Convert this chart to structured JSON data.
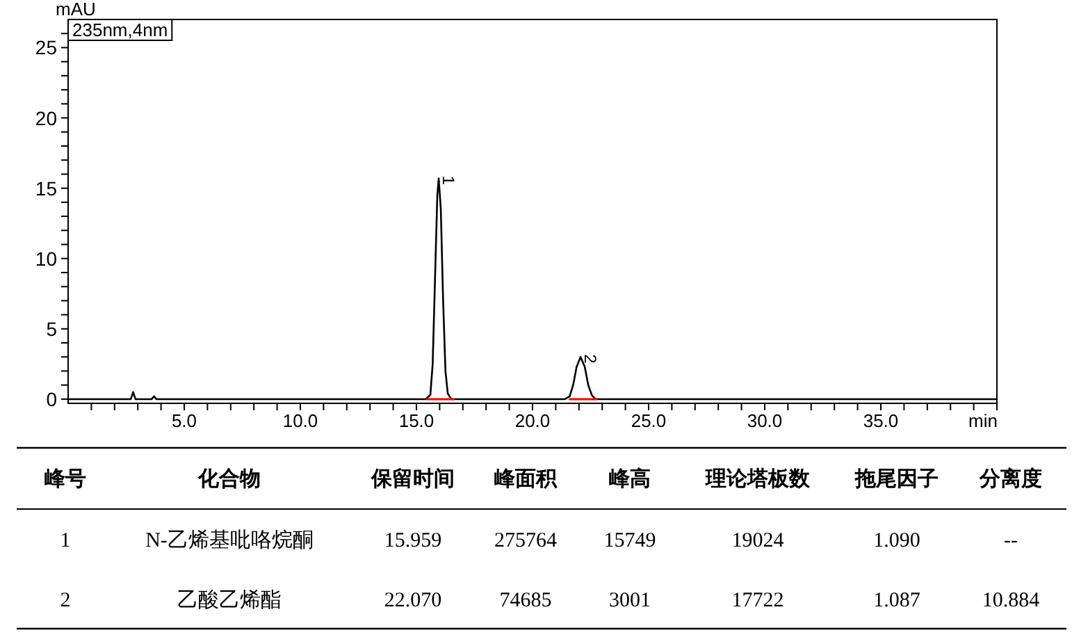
{
  "chart_data": [
    {
      "type": "line",
      "xlabel": "min",
      "ylabel": "mAU",
      "annotations": [
        "235nm,4nm",
        {
          "text": "1",
          "x": 15.959,
          "y": 15.7
        },
        {
          "text": "2",
          "x": 22.07,
          "y": 3.0
        }
      ],
      "xlim": [
        0,
        40
      ],
      "ylim": [
        -0.3,
        27
      ],
      "xticks": [
        {
          "value": 1,
          "label": null
        },
        {
          "value": 2,
          "label": null
        },
        {
          "value": 3,
          "label": null
        },
        {
          "value": 4,
          "label": null
        },
        {
          "value": 5,
          "label": "5.0"
        },
        {
          "value": 6,
          "label": null
        },
        {
          "value": 7,
          "label": null
        },
        {
          "value": 8,
          "label": null
        },
        {
          "value": 9,
          "label": null
        },
        {
          "value": 10,
          "label": "10.0"
        },
        {
          "value": 11,
          "label": null
        },
        {
          "value": 12,
          "label": null
        },
        {
          "value": 13,
          "label": null
        },
        {
          "value": 14,
          "label": null
        },
        {
          "value": 15,
          "label": "15.0"
        },
        {
          "value": 16,
          "label": null
        },
        {
          "value": 17,
          "label": null
        },
        {
          "value": 18,
          "label": null
        },
        {
          "value": 19,
          "label": null
        },
        {
          "value": 20,
          "label": "20.0"
        },
        {
          "value": 21,
          "label": null
        },
        {
          "value": 22,
          "label": null
        },
        {
          "value": 23,
          "label": null
        },
        {
          "value": 24,
          "label": null
        },
        {
          "value": 25,
          "label": "25.0"
        },
        {
          "value": 26,
          "label": null
        },
        {
          "value": 27,
          "label": null
        },
        {
          "value": 28,
          "label": null
        },
        {
          "value": 29,
          "label": null
        },
        {
          "value": 30,
          "label": "30.0"
        },
        {
          "value": 31,
          "label": null
        },
        {
          "value": 32,
          "label": null
        },
        {
          "value": 33,
          "label": null
        },
        {
          "value": 34,
          "label": null
        },
        {
          "value": 35,
          "label": "35.0"
        },
        {
          "value": 36,
          "label": null
        },
        {
          "value": 37,
          "label": null
        },
        {
          "value": 38,
          "label": null
        },
        {
          "value": 39,
          "label": null
        },
        {
          "value": 40,
          "label": null
        }
      ],
      "yticks": [
        0,
        {
          "value": 1,
          "label": null
        },
        {
          "value": 2,
          "label": null
        },
        {
          "value": 3,
          "label": null
        },
        {
          "value": 4,
          "label": null
        },
        5,
        {
          "value": 6,
          "label": null
        },
        {
          "value": 7,
          "label": null
        },
        {
          "value": 8,
          "label": null
        },
        {
          "value": 9,
          "label": null
        },
        10,
        {
          "value": 11,
          "label": null
        },
        {
          "value": 12,
          "label": null
        },
        {
          "value": 13,
          "label": null
        },
        {
          "value": 14,
          "label": null
        },
        15,
        {
          "value": 16,
          "label": null
        },
        {
          "value": 17,
          "label": null
        },
        {
          "value": 18,
          "label": null
        },
        {
          "value": 19,
          "label": null
        },
        20,
        {
          "value": 21,
          "label": null
        },
        {
          "value": 22,
          "label": null
        },
        {
          "value": 23,
          "label": null
        },
        {
          "value": 24,
          "label": null
        },
        25,
        {
          "value": 26,
          "label": null
        }
      ],
      "series": [
        {
          "color": "#000000",
          "x": [
            0,
            2.7,
            2.8,
            2.9,
            3.6,
            3.7,
            3.8,
            15.4,
            15.6,
            15.7,
            15.8,
            15.9,
            15.96,
            16.05,
            16.15,
            16.25,
            16.35,
            16.5,
            21.4,
            21.6,
            21.75,
            21.9,
            22.07,
            22.25,
            22.4,
            22.55,
            22.7,
            40
          ],
          "values": [
            0,
            0,
            0.5,
            0,
            0,
            0.2,
            0,
            0,
            0.3,
            2.5,
            8.5,
            14.5,
            15.7,
            13.5,
            7,
            2,
            0.4,
            0,
            0,
            0.2,
            1.0,
            2.3,
            3.0,
            2.3,
            1.0,
            0.3,
            0,
            0
          ]
        },
        {
          "color": "#ff0000",
          "x": [
            15.45,
            16.6
          ],
          "values": [
            0,
            0
          ]
        },
        {
          "color": "#ff0000",
          "x": [
            21.6,
            22.75
          ],
          "values": [
            0,
            0
          ]
        }
      ]
    },
    {
      "type": "other",
      "categories": [
        "峰号",
        "化合物",
        "保留时间",
        "峰面积",
        "峰高",
        "理论塔板数",
        "拖尾因子",
        "分离度"
      ],
      "cell_labels": [
        [
          "1",
          "N-乙烯基吡咯烷酮",
          "15.959",
          "275764",
          "15749",
          "19024",
          "1.090",
          "--"
        ],
        [
          "2",
          "乙酸乙烯酯",
          "22.070",
          "74685",
          "3001",
          "17722",
          "1.087",
          "10.884"
        ]
      ]
    }
  ]
}
